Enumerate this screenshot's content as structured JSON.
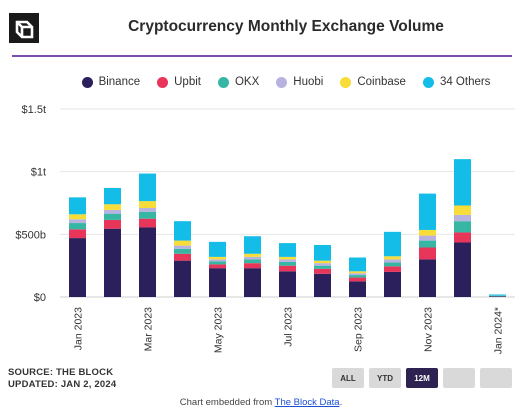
{
  "header": {
    "title": "Cryptocurrency Monthly Exchange Volume"
  },
  "footer": {
    "source": "SOURCE: THE BLOCK",
    "updated": "UPDATED: JAN 2, 2024",
    "embed_prefix": "Chart embedded from ",
    "embed_link": "The Block Data",
    "embed_suffix": "."
  },
  "range_buttons": [
    "ALL",
    "YTD",
    "12M",
    "",
    ""
  ],
  "active_range": "12M",
  "colors": {
    "Binance": "#2b1f5c",
    "Upbit": "#e8355a",
    "OKX": "#35b7a4",
    "Huobi": "#b8b2e0",
    "Coinbase": "#f7dc3a",
    "34 Others": "#14bde8",
    "accent_rule": "#7a4fb0"
  },
  "chart_data": {
    "type": "bar",
    "stacked": true,
    "title": "Cryptocurrency Monthly Exchange Volume",
    "categories": [
      "Jan 2023",
      "Feb 2023",
      "Mar 2023",
      "Apr 2023",
      "May 2023",
      "Jun 2023",
      "Jul 2023",
      "Aug 2023",
      "Sep 2023",
      "Oct 2023",
      "Nov 2023",
      "Dec 2023",
      "Jan 2024*"
    ],
    "tick_labels": [
      "Jan 2023",
      "",
      "Mar 2023",
      "",
      "May 2023",
      "",
      "Jul 2023",
      "",
      "Sep 2023",
      "",
      "Nov 2023",
      "",
      "Jan 2024*"
    ],
    "y_ticks": [
      0,
      500,
      1000,
      1500
    ],
    "y_tick_labels": [
      "$0",
      "$500b",
      "$1t",
      "$1.5t"
    ],
    "ylim": [
      0,
      1500
    ],
    "units": "billion USD",
    "grid": true,
    "legend_position": "top",
    "series": [
      {
        "name": "Binance",
        "values": [
          470,
          545,
          555,
          290,
          230,
          230,
          205,
          185,
          125,
          200,
          300,
          435,
          5
        ]
      },
      {
        "name": "Upbit",
        "values": [
          70,
          70,
          70,
          55,
          30,
          40,
          45,
          40,
          30,
          45,
          95,
          80,
          1
        ]
      },
      {
        "name": "OKX",
        "values": [
          50,
          50,
          55,
          40,
          25,
          30,
          30,
          25,
          20,
          30,
          55,
          90,
          2
        ]
      },
      {
        "name": "Huobi",
        "values": [
          30,
          30,
          30,
          25,
          15,
          20,
          20,
          20,
          15,
          25,
          40,
          50,
          1
        ]
      },
      {
        "name": "Coinbase",
        "values": [
          40,
          45,
          55,
          40,
          20,
          25,
          20,
          20,
          15,
          25,
          45,
          75,
          1
        ]
      },
      {
        "name": "34 Others",
        "values": [
          135,
          130,
          220,
          155,
          120,
          140,
          110,
          125,
          110,
          195,
          290,
          370,
          10
        ]
      }
    ]
  }
}
